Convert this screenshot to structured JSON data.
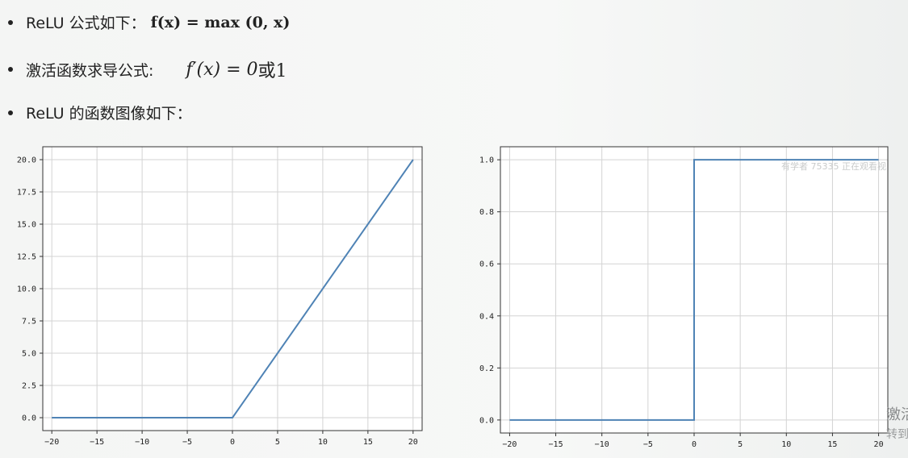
{
  "bullets": [
    {
      "text": "ReLU 公式如下：",
      "formula": "f(x) = max (0, x)"
    },
    {
      "text": "激活函数求导公式:",
      "formula_main": "f′(x) = 0",
      "formula_tail": "或1"
    },
    {
      "text": "ReLU 的函数图像如下："
    }
  ],
  "overlay": {
    "watermark": "有学者 75335 正在观看视",
    "edge_top": "激活",
    "edge_bottom": "转到"
  },
  "chart_data": [
    {
      "type": "line",
      "title": "",
      "xlabel": "",
      "ylabel": "",
      "x": [
        -20,
        0,
        20
      ],
      "series": [
        {
          "values": [
            0,
            0,
            20
          ]
        }
      ],
      "xlim": [
        -21,
        21
      ],
      "ylim": [
        -1,
        21
      ],
      "xticks": [
        -20,
        -15,
        -10,
        -5,
        0,
        5,
        10,
        15,
        20
      ],
      "yticks": [
        0.0,
        2.5,
        5.0,
        7.5,
        10.0,
        12.5,
        15.0,
        17.5,
        20.0
      ],
      "xtick_labels": [
        "−20",
        "−15",
        "−10",
        "−5",
        "0",
        "5",
        "10",
        "15",
        "20"
      ],
      "ytick_labels": [
        "0.0",
        "2.5",
        "5.0",
        "7.5",
        "10.0",
        "12.5",
        "15.0",
        "17.5",
        "20.0"
      ],
      "grid": true,
      "line_color": "#4f83b5"
    },
    {
      "type": "line",
      "title": "",
      "xlabel": "",
      "ylabel": "",
      "x": [
        -20,
        0,
        0,
        20
      ],
      "series": [
        {
          "values": [
            0,
            0,
            1,
            1
          ]
        }
      ],
      "xlim": [
        -21,
        21
      ],
      "ylim": [
        -0.05,
        1.05
      ],
      "xticks": [
        -20,
        -15,
        -10,
        -5,
        0,
        5,
        10,
        15,
        20
      ],
      "yticks": [
        0.0,
        0.2,
        0.4,
        0.6,
        0.8,
        1.0
      ],
      "xtick_labels": [
        "−20",
        "−15",
        "−10",
        "−5",
        "0",
        "5",
        "10",
        "15",
        "20"
      ],
      "ytick_labels": [
        "0.0",
        "0.2",
        "0.4",
        "0.6",
        "0.8",
        "1.0"
      ],
      "grid": true,
      "line_color": "#4f83b5"
    }
  ]
}
